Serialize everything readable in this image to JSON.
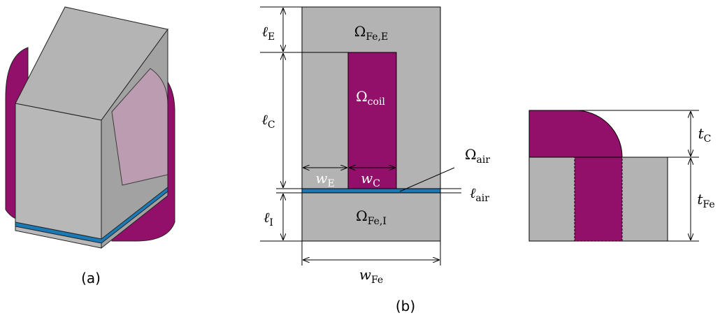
{
  "captions": {
    "a": "(a)",
    "b": "(b)"
  },
  "regions": {
    "iron_e": {
      "symbol": "Ω",
      "sub": "Fe,E"
    },
    "coil": {
      "symbol": "Ω",
      "sub": "coil"
    },
    "iron_i": {
      "symbol": "Ω",
      "sub": "Fe,I"
    },
    "air": {
      "symbol": "Ω",
      "sub": "air"
    }
  },
  "dimensions": {
    "l_e": {
      "symbol": "ℓ",
      "sub": "E"
    },
    "l_c": {
      "symbol": "ℓ",
      "sub": "C"
    },
    "l_i": {
      "symbol": "ℓ",
      "sub": "I"
    },
    "l_air": {
      "symbol": "ℓ",
      "sub": "air"
    },
    "w_e": {
      "symbol": "w",
      "sub": "E"
    },
    "w_c": {
      "symbol": "w",
      "sub": "C"
    },
    "w_fe": {
      "symbol": "w",
      "sub": "Fe"
    },
    "t_c": {
      "symbol": "t",
      "sub": "C"
    },
    "t_fe": {
      "symbol": "t",
      "sub": "Fe"
    }
  }
}
